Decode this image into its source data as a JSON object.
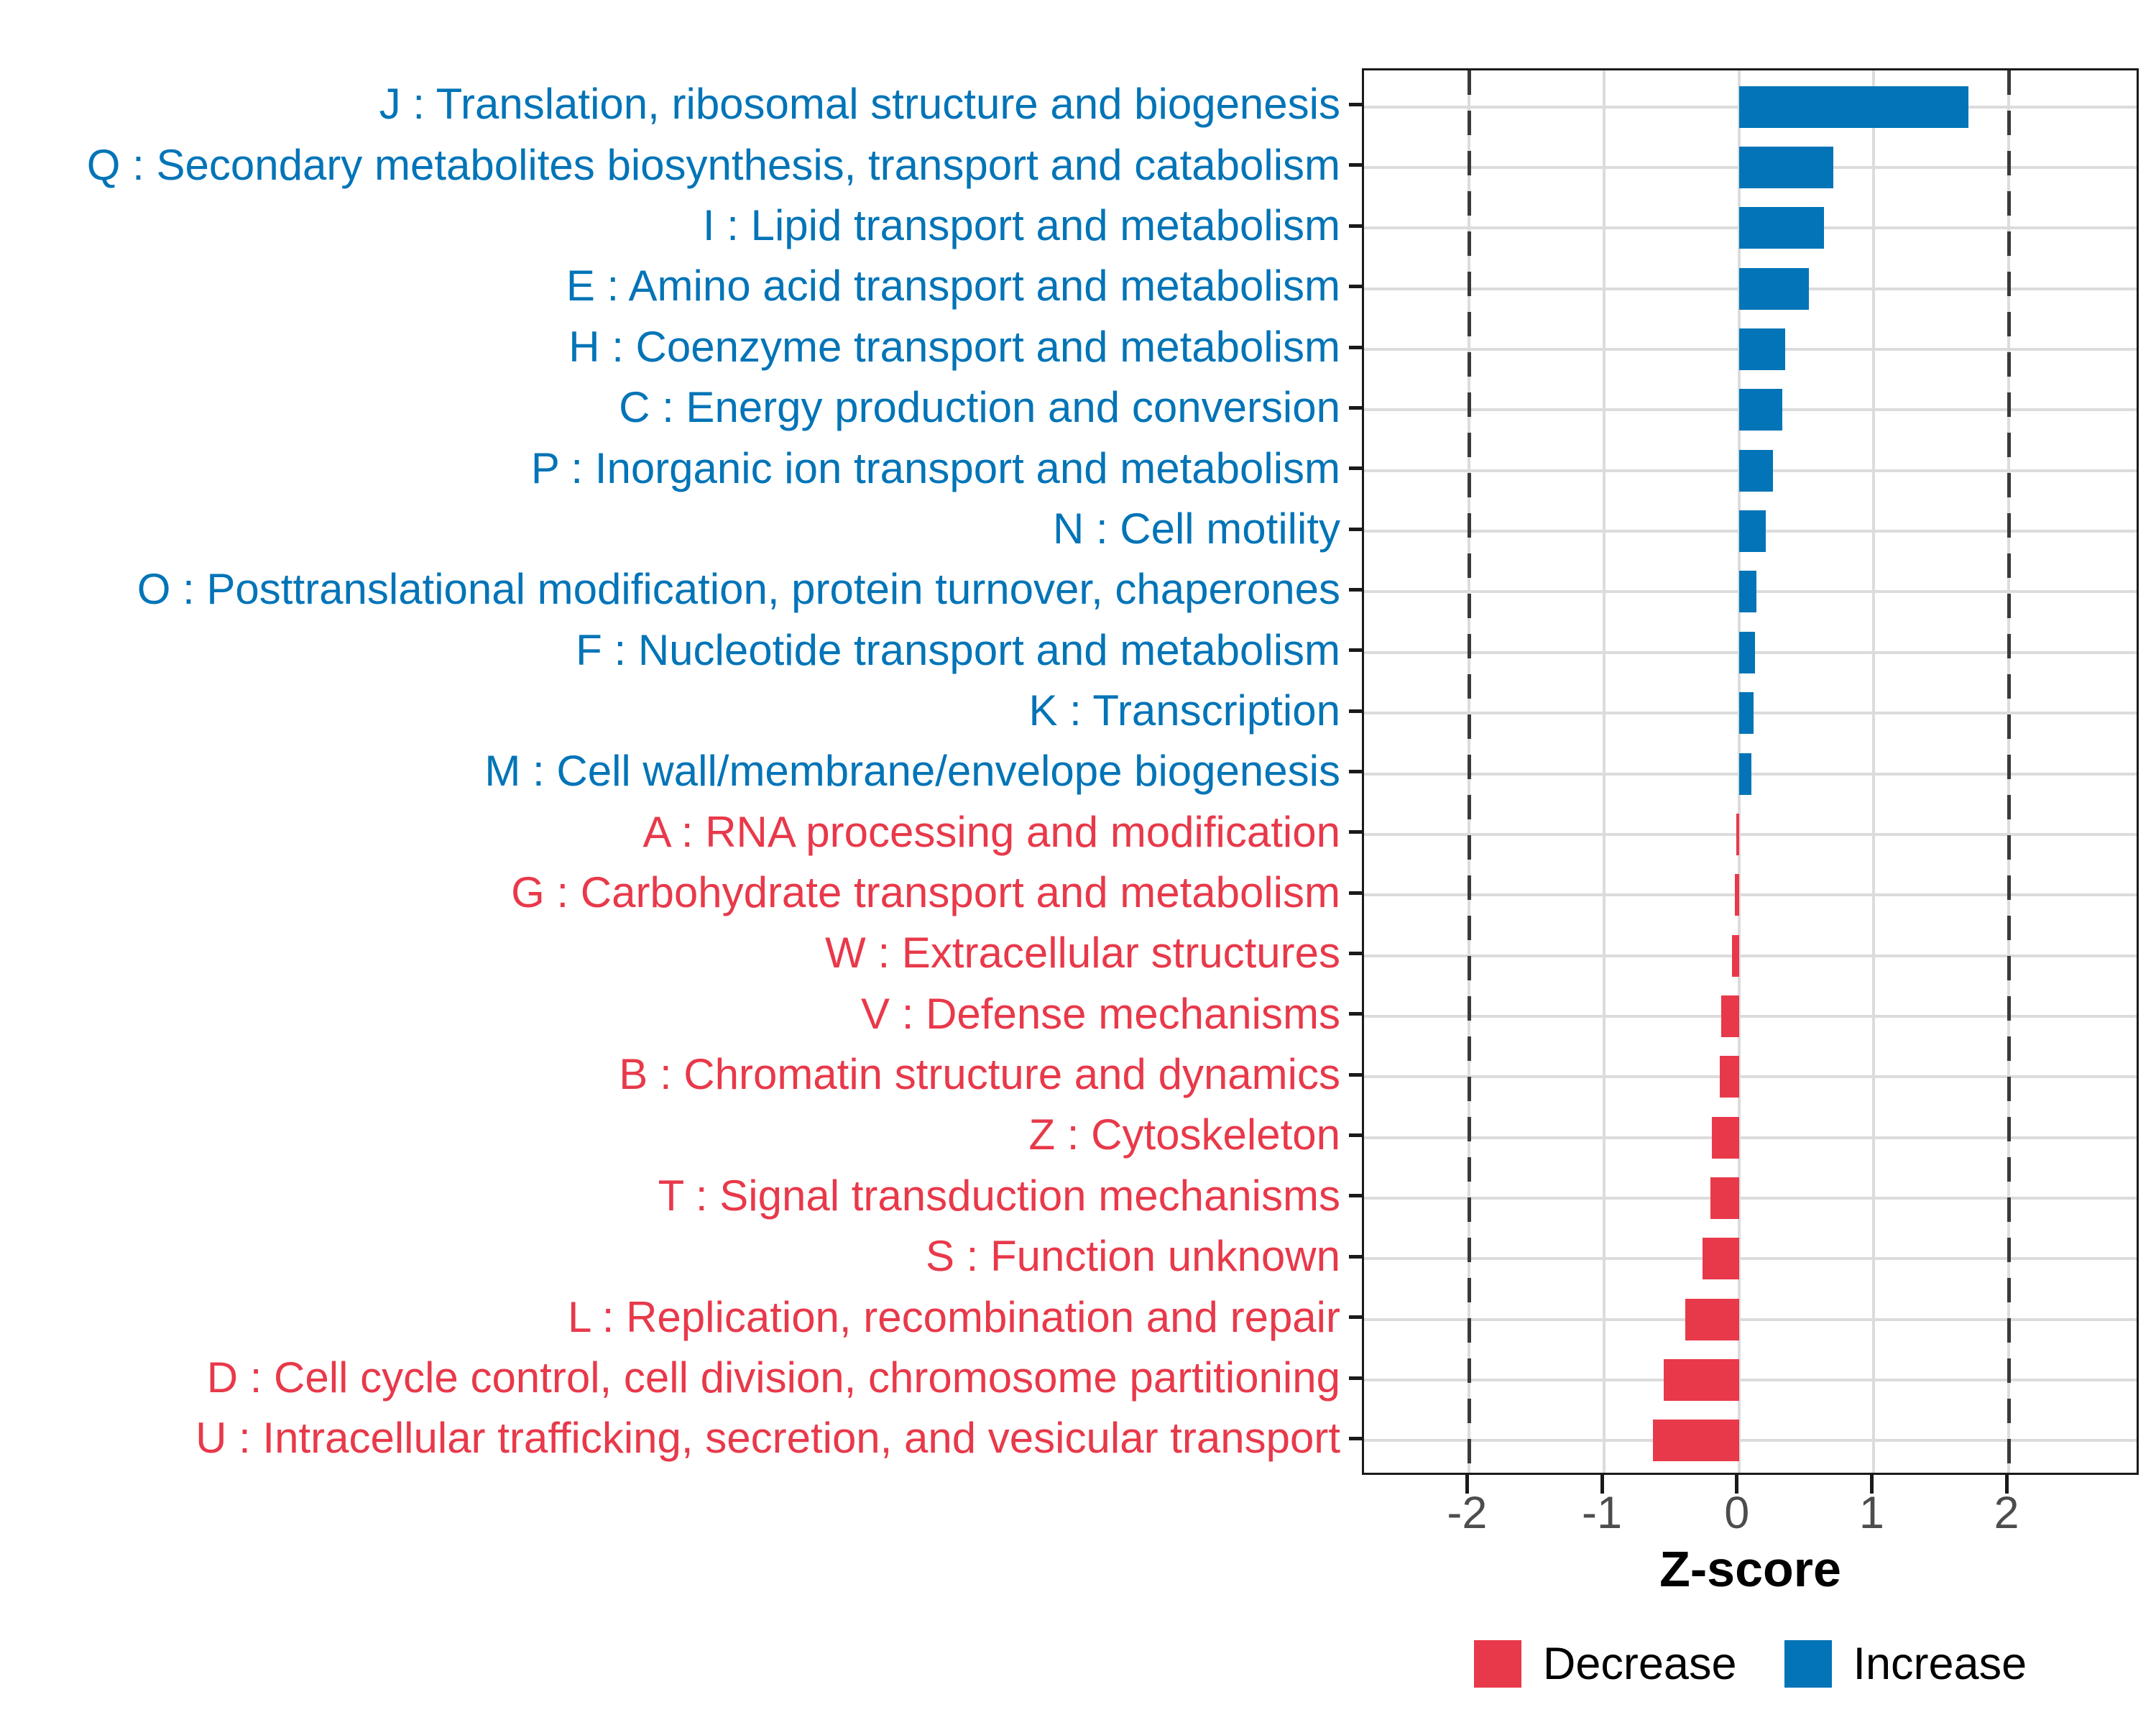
{
  "chart_data": {
    "type": "bar",
    "orientation": "horizontal",
    "xlabel": "Z-score",
    "x_ticks": [
      -2,
      -1,
      0,
      1,
      2
    ],
    "xlim": [
      -2.78,
      2.98
    ],
    "dashed_lines_x": [
      -2,
      2
    ],
    "grid": "on",
    "legend_position": "bottom",
    "colors": {
      "increase": "#0274B7",
      "decrease": "#E8394A",
      "gridline": "#DCDCDC",
      "dashed_line": "#3A3A3A",
      "tick_label": "#4D4D4D",
      "panel_border": "#1a1a1a"
    },
    "legend": [
      {
        "key": "decrease",
        "label": "Decrease"
      },
      {
        "key": "increase",
        "label": "Increase"
      }
    ],
    "categories": [
      {
        "code": "J",
        "label": "J : Translation, ribosomal structure and biogenesis",
        "value": 1.7,
        "direction": "increase"
      },
      {
        "code": "Q",
        "label": "Q : Secondary metabolites biosynthesis, transport and catabolism",
        "value": 0.7,
        "direction": "increase"
      },
      {
        "code": "I",
        "label": "I : Lipid transport and metabolism",
        "value": 0.63,
        "direction": "increase"
      },
      {
        "code": "E",
        "label": "E : Amino acid transport and metabolism",
        "value": 0.52,
        "direction": "increase"
      },
      {
        "code": "H",
        "label": "H : Coenzyme transport and metabolism",
        "value": 0.34,
        "direction": "increase"
      },
      {
        "code": "C",
        "label": "C : Energy production and conversion",
        "value": 0.32,
        "direction": "increase"
      },
      {
        "code": "P",
        "label": "P : Inorganic ion transport and metabolism",
        "value": 0.25,
        "direction": "increase"
      },
      {
        "code": "N",
        "label": "N : Cell motility",
        "value": 0.2,
        "direction": "increase"
      },
      {
        "code": "O",
        "label": "O : Posttranslational modification, protein turnover, chaperones",
        "value": 0.13,
        "direction": "increase"
      },
      {
        "code": "F",
        "label": "F : Nucleotide transport and metabolism",
        "value": 0.12,
        "direction": "increase"
      },
      {
        "code": "K",
        "label": "K : Transcription",
        "value": 0.11,
        "direction": "increase"
      },
      {
        "code": "M",
        "label": "M : Cell wall/membrane/envelope biogenesis",
        "value": 0.09,
        "direction": "increase"
      },
      {
        "code": "A",
        "label": "A : RNA processing and modification",
        "value": -0.02,
        "direction": "decrease"
      },
      {
        "code": "G",
        "label": "G : Carbohydrate transport and metabolism",
        "value": -0.03,
        "direction": "decrease"
      },
      {
        "code": "W",
        "label": "W : Extracellular structures",
        "value": -0.05,
        "direction": "decrease"
      },
      {
        "code": "V",
        "label": "V : Defense mechanisms",
        "value": -0.13,
        "direction": "decrease"
      },
      {
        "code": "B",
        "label": "B : Chromatin structure and dynamics",
        "value": -0.14,
        "direction": "decrease"
      },
      {
        "code": "Z",
        "label": "Z : Cytoskeleton",
        "value": -0.2,
        "direction": "decrease"
      },
      {
        "code": "T",
        "label": "T : Signal transduction mechanisms",
        "value": -0.21,
        "direction": "decrease"
      },
      {
        "code": "S",
        "label": "S : Function unknown",
        "value": -0.27,
        "direction": "decrease"
      },
      {
        "code": "L",
        "label": "L : Replication, recombination and repair",
        "value": -0.4,
        "direction": "decrease"
      },
      {
        "code": "D",
        "label": "D : Cell cycle control, cell division, chromosome partitioning",
        "value": -0.56,
        "direction": "decrease"
      },
      {
        "code": "U",
        "label": "U : Intracellular trafficking, secretion, and vesicular transport",
        "value": -0.64,
        "direction": "decrease"
      }
    ]
  }
}
